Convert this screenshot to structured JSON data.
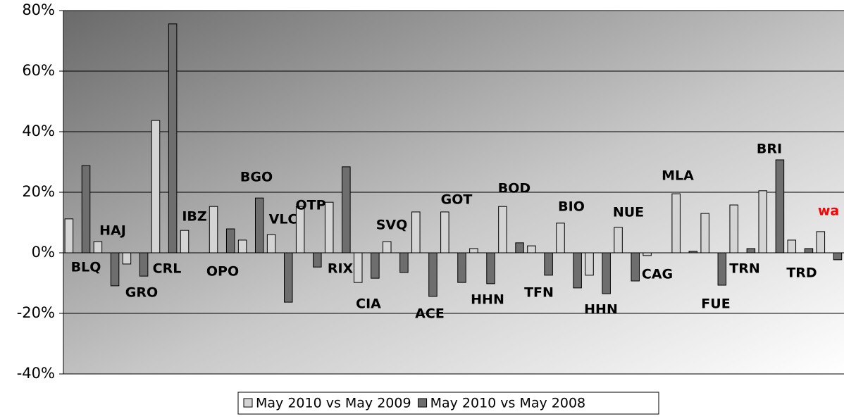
{
  "chart_data": {
    "type": "bar",
    "categories": [
      "BLQ",
      "HAJ",
      "GRO",
      "CRL",
      "IBZ",
      "OPO",
      "BGO",
      "VLC",
      "OTP",
      "RIX",
      "CIA",
      "SVQ",
      "ACE",
      "GOT",
      "HHN",
      "BOD",
      "TFN",
      "BIO",
      "HHN",
      "NUE",
      "CAG",
      "MLA",
      "FUE",
      "TRN",
      "BRI",
      "TRD",
      "wa"
    ],
    "category_label_colors": [
      "#000000",
      "#000000",
      "#000000",
      "#000000",
      "#000000",
      "#000000",
      "#000000",
      "#000000",
      "#000000",
      "#000000",
      "#000000",
      "#000000",
      "#000000",
      "#000000",
      "#000000",
      "#000000",
      "#000000",
      "#000000",
      "#000000",
      "#000000",
      "#000000",
      "#000000",
      "#000000",
      "#000000",
      "#000000",
      "#000000",
      "#ff0000"
    ],
    "series": [
      {
        "name": "May 2010 vs May 2009",
        "color": "#d4d4d4",
        "values": [
          11.2,
          3.7,
          -3.7,
          43.7,
          7.4,
          15.3,
          4.2,
          6.0,
          15.3,
          16.7,
          -9.8,
          3.7,
          13.5,
          13.5,
          1.4,
          15.3,
          2.3,
          9.8,
          -7.4,
          8.4,
          -0.9,
          19.5,
          13.0,
          15.8,
          20.5,
          4.2,
          7.0
        ]
      },
      {
        "name": "May 2010 vs May 2008",
        "color": "#6e6e6e",
        "values": [
          28.8,
          -10.9,
          -7.7,
          75.6,
          0,
          7.9,
          18.1,
          -16.3,
          -4.7,
          28.4,
          -8.4,
          -6.5,
          -14.4,
          -9.8,
          -10.2,
          3.3,
          -7.4,
          -11.6,
          -13.5,
          -9.3,
          0,
          0.5,
          -10.7,
          1.4,
          30.7,
          1.4,
          -2.3
        ]
      }
    ],
    "ylim": [
      -40,
      80
    ],
    "yticks": [
      {
        "value": -40,
        "label": "-40%"
      },
      {
        "value": -20,
        "label": "-20%"
      },
      {
        "value": 0,
        "label": "0%"
      },
      {
        "value": 20,
        "label": "20%"
      },
      {
        "value": 40,
        "label": "40%"
      },
      {
        "value": 60,
        "label": "60%"
      },
      {
        "value": 80,
        "label": "80%"
      }
    ],
    "grid": true,
    "legend": "bottom"
  }
}
